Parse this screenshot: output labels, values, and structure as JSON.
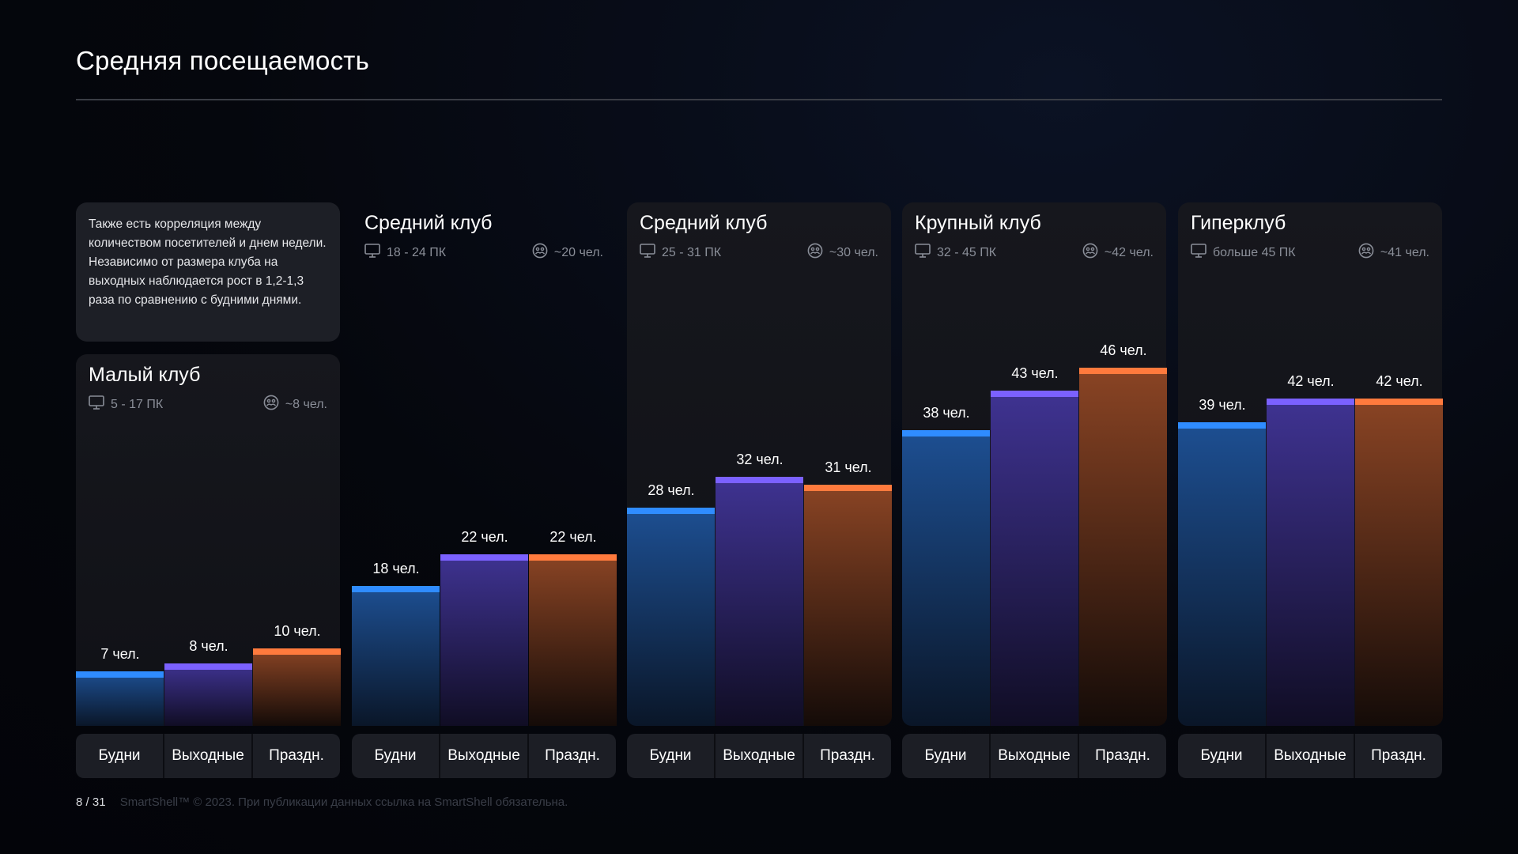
{
  "page_title": "Средняя посещаемость",
  "note": "Также есть корреляция между количеством посетителей и днем недели. Независимо от размера клуба на выходных наблюдается рост в 1,2-1,3 раза по сравнению с будними днями.",
  "colors": {
    "weekday": "#2f8cff",
    "weekend": "#7b61ff",
    "holiday": "#ff7a3d"
  },
  "icons": {
    "pc": "monitor-icon",
    "people": "people-icon"
  },
  "chart_data": {
    "type": "bar",
    "title": "Средняя посещаемость",
    "categories": [
      "Будни",
      "Выходные",
      "Праздн."
    ],
    "unit": "чел.",
    "ylim": [
      0,
      66
    ],
    "grid": false,
    "groups": [
      {
        "name": "Малый клуб",
        "pc_range": "5 - 17 ПК",
        "avg": "~8 чел.",
        "values": [
          7,
          8,
          10
        ],
        "labels": [
          "7 чел.",
          "8 чел.",
          "10 чел."
        ]
      },
      {
        "name": "Средний клуб",
        "pc_range": "18 - 24 ПК",
        "avg": "~20 чел.",
        "values": [
          18,
          22,
          22
        ],
        "labels": [
          "18 чел.",
          "22 чел.",
          "22 чел."
        ]
      },
      {
        "name": "Средний клуб",
        "pc_range": "25 - 31 ПК",
        "avg": "~30 чел.",
        "values": [
          28,
          32,
          31
        ],
        "labels": [
          "28 чел.",
          "32 чел.",
          "31 чел."
        ]
      },
      {
        "name": "Крупный клуб",
        "pc_range": "32 - 45 ПК",
        "avg": "~42 чел.",
        "values": [
          38,
          43,
          46
        ],
        "labels": [
          "38 чел.",
          "43 чел.",
          "46 чел."
        ]
      },
      {
        "name": "Гиперклуб",
        "pc_range": "больше 45 ПК",
        "avg": "~41 чел.",
        "values": [
          39,
          42,
          42
        ],
        "labels": [
          "39 чел.",
          "42 чел.",
          "42 чел."
        ]
      }
    ]
  },
  "footer": {
    "page": "8",
    "separator": "/",
    "total": "31",
    "copyright": "SmartShell™ © 2023. При публикации данных ссылка на SmartShell обязательна."
  }
}
